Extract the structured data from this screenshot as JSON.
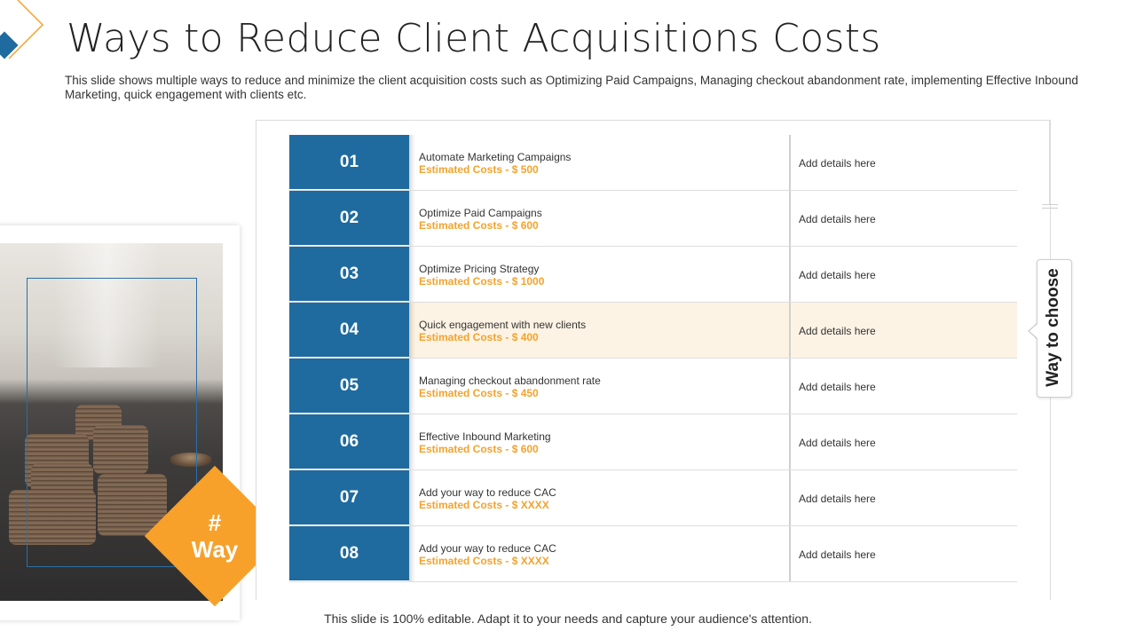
{
  "title": "Ways to Reduce Client Acquisitions Costs",
  "subtitle": "This slide shows multiple ways to reduce and minimize  the client acquisition costs such as Optimizing Paid Campaigns, Managing checkout abandonment rate, implementing Effective Inbound Marketing, quick engagement with clients etc.",
  "badge": {
    "hash": "#",
    "label": "Way"
  },
  "side_label": "Way to choose",
  "colors": {
    "number_bg": "#1f6ba0",
    "accent": "#f7a12b",
    "highlight_row": "#fdf3e4"
  },
  "rows": [
    {
      "num": "01",
      "name": "Automate Marketing Campaigns",
      "cost": "Estimated Costs  - $ 500",
      "details": "Add details here"
    },
    {
      "num": "02",
      "name": "Optimize Paid Campaigns",
      "cost": "Estimated Costs  - $ 600",
      "details": "Add details here"
    },
    {
      "num": "03",
      "name": "Optimize Pricing Strategy",
      "cost": "Estimated Costs  - $ 1000",
      "details": "Add details here"
    },
    {
      "num": "04",
      "name": "Quick engagement with new clients",
      "cost": "Estimated Costs  - $ 400",
      "details": "Add details here",
      "highlight": true
    },
    {
      "num": "05",
      "name": "Managing checkout abandonment rate",
      "cost": "Estimated Costs  - $ 450",
      "details": "Add details here"
    },
    {
      "num": "06",
      "name": "Effective Inbound Marketing",
      "cost": "Estimated Costs  - $ 600",
      "details": "Add details here"
    },
    {
      "num": "07",
      "name": "Add your way to reduce CAC",
      "cost": "Estimated Costs  - $ XXXX",
      "details": "Add details here"
    },
    {
      "num": "08",
      "name": "Add your way to reduce CAC",
      "cost": "Estimated Costs  - $ XXXX",
      "details": "Add details here"
    }
  ],
  "footer": "This slide is 100% editable. Adapt it to your needs and capture your audience's attention."
}
